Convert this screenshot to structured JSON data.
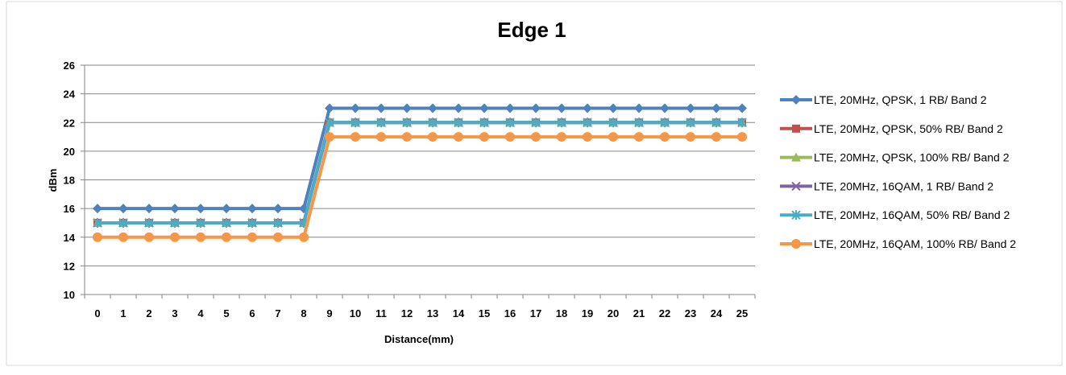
{
  "chart_data": {
    "type": "line",
    "title": "Edge 1",
    "xlabel": "Distance(mm)",
    "ylabel": "dBm",
    "ylim": [
      10,
      26
    ],
    "yticks": [
      10,
      12,
      14,
      16,
      18,
      20,
      22,
      24,
      26
    ],
    "grid": true,
    "legend_position": "right",
    "categories": [
      "0",
      "1",
      "2",
      "3",
      "4",
      "5",
      "6",
      "7",
      "8",
      "9",
      "10",
      "11",
      "12",
      "13",
      "14",
      "15",
      "16",
      "17",
      "18",
      "19",
      "20",
      "21",
      "22",
      "23",
      "24",
      "25"
    ],
    "series": [
      {
        "name": "LTE, 20MHz, QPSK, 1 RB/ Band 2",
        "color": "#4F81BD",
        "marker": "diamond",
        "values": [
          16,
          16,
          16,
          16,
          16,
          16,
          16,
          16,
          16,
          23,
          23,
          23,
          23,
          23,
          23,
          23,
          23,
          23,
          23,
          23,
          23,
          23,
          23,
          23,
          23,
          23
        ]
      },
      {
        "name": "LTE, 20MHz, QPSK, 50% RB/ Band 2",
        "color": "#C0504D",
        "marker": "square",
        "values": [
          15,
          15,
          15,
          15,
          15,
          15,
          15,
          15,
          15,
          22,
          22,
          22,
          22,
          22,
          22,
          22,
          22,
          22,
          22,
          22,
          22,
          22,
          22,
          22,
          22,
          22
        ]
      },
      {
        "name": "LTE, 20MHz, QPSK, 100% RB/ Band 2",
        "color": "#9BBB59",
        "marker": "triangle",
        "values": [
          15,
          15,
          15,
          15,
          15,
          15,
          15,
          15,
          15,
          22,
          22,
          22,
          22,
          22,
          22,
          22,
          22,
          22,
          22,
          22,
          22,
          22,
          22,
          22,
          22,
          22
        ]
      },
      {
        "name": "LTE, 20MHz, 16QAM, 1 RB/ Band 2",
        "color": "#8064A2",
        "marker": "x",
        "values": [
          15,
          15,
          15,
          15,
          15,
          15,
          15,
          15,
          15,
          22,
          22,
          22,
          22,
          22,
          22,
          22,
          22,
          22,
          22,
          22,
          22,
          22,
          22,
          22,
          22,
          22
        ]
      },
      {
        "name": "LTE, 20MHz, 16QAM, 50% RB/ Band 2",
        "color": "#4BACC6",
        "marker": "asterisk",
        "values": [
          15,
          15,
          15,
          15,
          15,
          15,
          15,
          15,
          15,
          22,
          22,
          22,
          22,
          22,
          22,
          22,
          22,
          22,
          22,
          22,
          22,
          22,
          22,
          22,
          22,
          22
        ]
      },
      {
        "name": "LTE, 20MHz, 16QAM, 100% RB/ Band 2",
        "color": "#F79646",
        "marker": "circle",
        "values": [
          14,
          14,
          14,
          14,
          14,
          14,
          14,
          14,
          14,
          21,
          21,
          21,
          21,
          21,
          21,
          21,
          21,
          21,
          21,
          21,
          21,
          21,
          21,
          21,
          21,
          21
        ]
      }
    ]
  }
}
